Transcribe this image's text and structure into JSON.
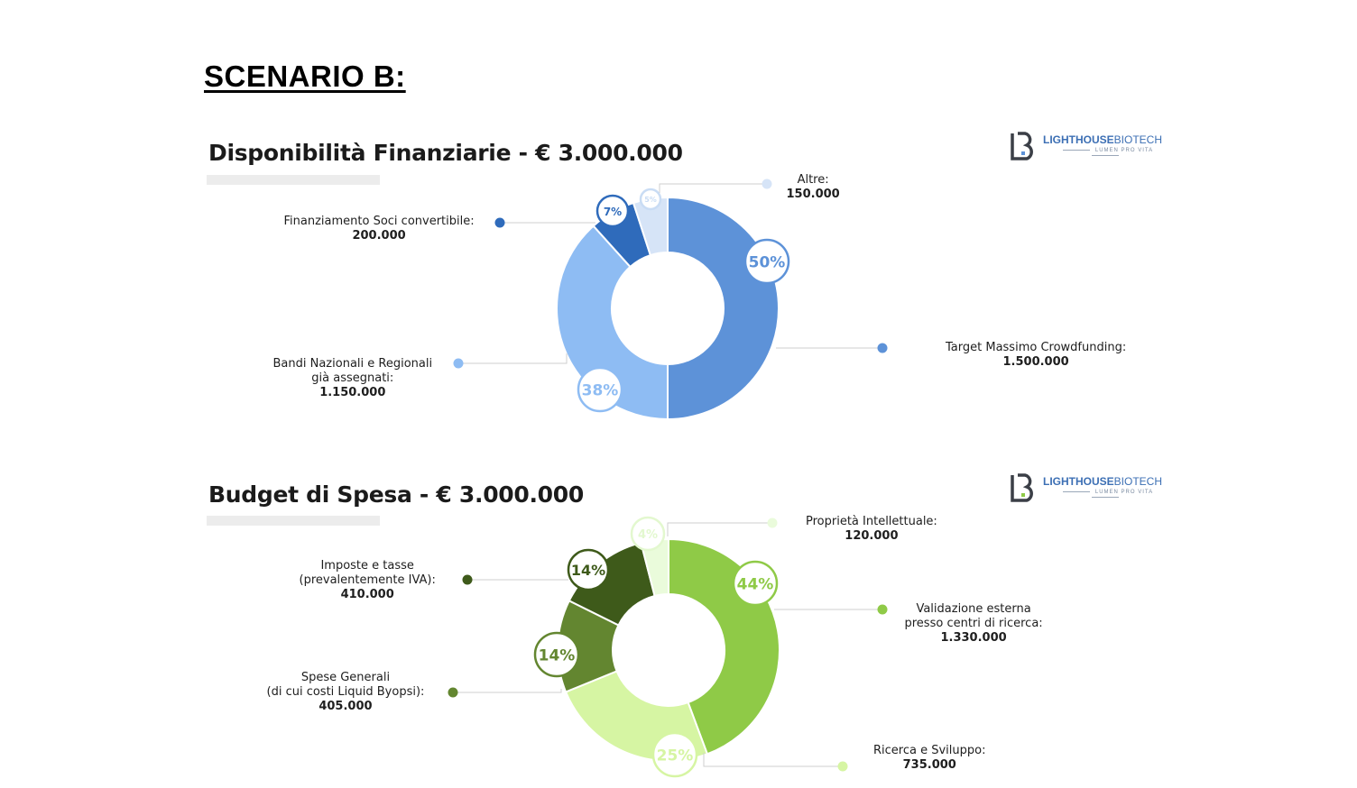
{
  "page": {
    "title": "SCENARIO B:"
  },
  "logo": {
    "brand_bold": "LIGHTHOUSE",
    "brand_regular": "BIOTECH",
    "tagline": "LUMEN PRO VITA"
  },
  "chart_data": [
    {
      "type": "pie",
      "title": "Disponibilità Finanziarie - € 3.000.000",
      "slices": [
        {
          "name_lines": [
            "Target Massimo Crowdfunding:"
          ],
          "value": 1500000,
          "value_label": "1.500.000",
          "percent": "50%",
          "color": "#5d92d8",
          "badge_color": "#5d92d8"
        },
        {
          "name_lines": [
            "Bandi Nazionali e Regionali",
            "già assegnati:"
          ],
          "value": 1150000,
          "value_label": "1.150.000",
          "percent": "38%",
          "color": "#8ebcf3",
          "badge_color": "#8ebcf3"
        },
        {
          "name_lines": [
            "Finanziamento Soci convertibile:"
          ],
          "value": 200000,
          "value_label": "200.000",
          "percent": "7%",
          "color": "#2f6bbb",
          "badge_color": "#2f6bbb"
        },
        {
          "name_lines": [
            "Altre:"
          ],
          "value": 150000,
          "value_label": "150.000",
          "percent": "5%",
          "color": "#d6e4f7",
          "badge_color": "#c9dcf4"
        }
      ]
    },
    {
      "type": "pie",
      "title": "Budget di Spesa - € 3.000.000",
      "slices": [
        {
          "name_lines": [
            "Validazione esterna",
            "presso centri di ricerca:"
          ],
          "value": 1330000,
          "value_label": "1.330.000",
          "percent": "44%",
          "color": "#8fca47",
          "badge_color": "#8fca47"
        },
        {
          "name_lines": [
            "Ricerca e Sviluppo:"
          ],
          "value": 735000,
          "value_label": "735.000",
          "percent": "25%",
          "color": "#d6f5a3",
          "badge_color": "#d6f5a3"
        },
        {
          "name_lines": [
            "Spese Generali",
            "(di cui costi Liquid Byopsi):"
          ],
          "value": 405000,
          "value_label": "405.000",
          "percent": "14%",
          "color": "#638630",
          "badge_color": "#638630"
        },
        {
          "name_lines": [
            "Imposte e tasse",
            "(prevalentemente IVA):"
          ],
          "value": 410000,
          "value_label": "410.000",
          "percent": "14%",
          "color": "#3e5a1a",
          "badge_color": "#3e5a1a"
        },
        {
          "name_lines": [
            "Proprietà Intellettuale:"
          ],
          "value": 120000,
          "value_label": "120.000",
          "percent": "4%",
          "color": "#eafbdb",
          "badge_color": "#e3f8cf"
        }
      ]
    }
  ]
}
